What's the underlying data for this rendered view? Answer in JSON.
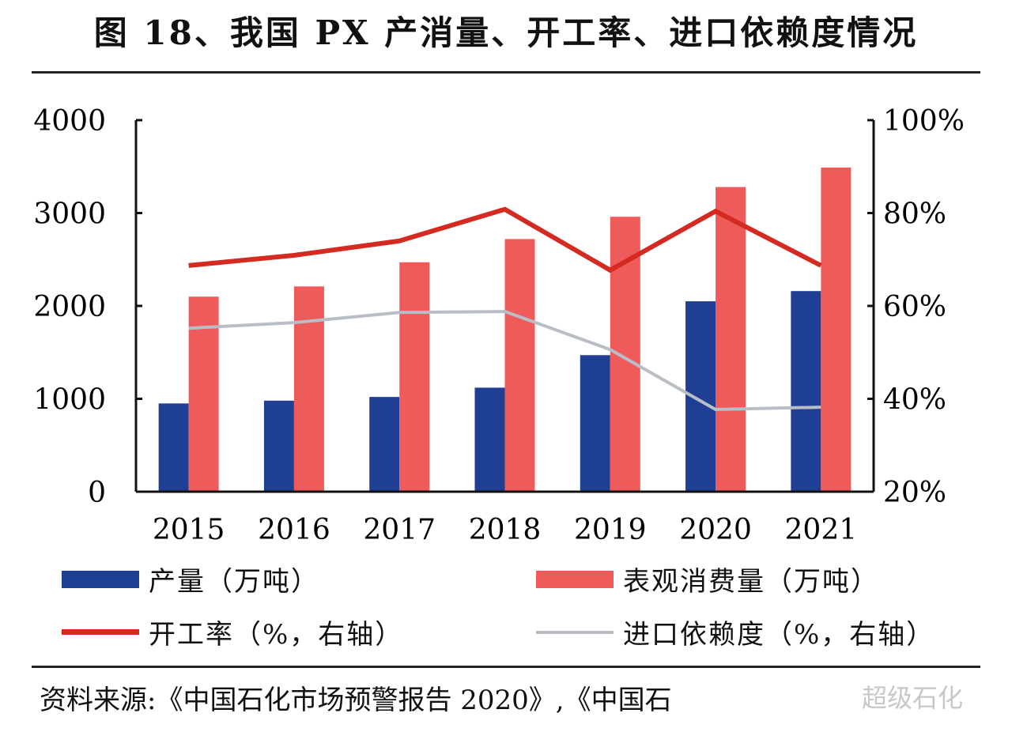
{
  "title": "图 18、我国 PX 产消量、开工率、进口依赖度情况",
  "source": "资料来源:《中国石化市场预警报告 2020》,《中国石",
  "watermark": "超级石化",
  "chart_data": {
    "type": "bar+line",
    "categories": [
      "2015",
      "2016",
      "2017",
      "2018",
      "2019",
      "2020",
      "2021"
    ],
    "y_left": {
      "range": [
        0,
        4000
      ],
      "ticks": [
        "0",
        "1000",
        "2000",
        "3000",
        "4000"
      ]
    },
    "y_right": {
      "range": [
        20,
        100
      ],
      "ticks": [
        "20%",
        "40%",
        "60%",
        "80%",
        "100%"
      ]
    },
    "series": [
      {
        "name": "产量（万吨）",
        "type": "bar",
        "axis": "left",
        "color": "#1f3f94",
        "values": [
          950,
          980,
          1020,
          1120,
          1470,
          2050,
          2160
        ]
      },
      {
        "name": "表观消费量（万吨）",
        "type": "bar",
        "axis": "left",
        "color": "#ef5b5b",
        "values": [
          2100,
          2210,
          2470,
          2720,
          2960,
          3280,
          3490
        ]
      },
      {
        "name": "开工率（%，右轴）",
        "type": "line",
        "axis": "right",
        "color": "#d42a22",
        "values": [
          68.7,
          70.9,
          74.0,
          80.8,
          67.7,
          80.4,
          68.7
        ]
      },
      {
        "name": "进口依赖度（%，右轴）",
        "type": "line",
        "axis": "right",
        "color": "#b9bec6",
        "values": [
          55.2,
          56.4,
          58.6,
          58.8,
          50.6,
          37.7,
          38.2
        ]
      }
    ],
    "grid": false,
    "legend_position": "bottom"
  }
}
